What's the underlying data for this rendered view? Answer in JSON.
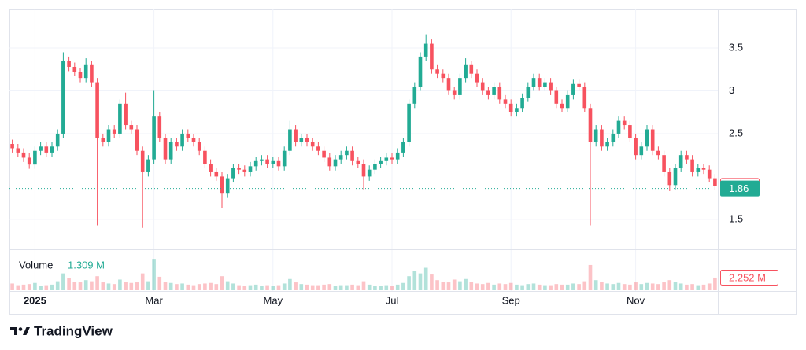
{
  "chart_data": {
    "type": "candlestick",
    "open": [
      2.38,
      2.33,
      2.28,
      2.22,
      2.14,
      2.3,
      2.35,
      2.28,
      2.35,
      2.5,
      3.35,
      3.28,
      3.22,
      3.15,
      3.3,
      3.1,
      2.45,
      2.4,
      2.55,
      2.5,
      2.85,
      2.6,
      2.55,
      2.3,
      2.05,
      2.2,
      2.7,
      2.45,
      2.2,
      2.4,
      2.35,
      2.5,
      2.45,
      2.4,
      2.3,
      2.15,
      2.05,
      2.0,
      1.8,
      1.98,
      2.1,
      2.08,
      2.05,
      2.12,
      2.18,
      2.2,
      2.15,
      2.18,
      2.12,
      2.3,
      2.55,
      2.4,
      2.45,
      2.4,
      2.35,
      2.3,
      2.22,
      2.12,
      2.2,
      2.25,
      2.3,
      2.18,
      2.15,
      2.0,
      2.08,
      2.15,
      2.18,
      2.22,
      2.2,
      2.28,
      2.4,
      2.85,
      3.05,
      3.4,
      3.55,
      3.25,
      3.2,
      3.15,
      3.0,
      2.95,
      3.15,
      3.3,
      3.2,
      3.1,
      3.0,
      2.95,
      3.05,
      2.9,
      2.85,
      2.75,
      2.8,
      2.92,
      3.05,
      3.15,
      3.05,
      3.1,
      3.0,
      2.85,
      2.8,
      2.95,
      3.08,
      3.05,
      2.8,
      2.4,
      2.55,
      2.35,
      2.4,
      2.5,
      2.65,
      2.6,
      2.45,
      2.25,
      2.35,
      2.55,
      2.3,
      2.25,
      2.05,
      1.9,
      2.1,
      2.25,
      2.2,
      2.05,
      2.1,
      2.08,
      1.98
    ],
    "high": [
      2.43,
      2.38,
      2.33,
      2.27,
      2.35,
      2.4,
      2.4,
      2.4,
      2.55,
      3.45,
      3.4,
      3.33,
      3.27,
      3.38,
      3.35,
      3.15,
      2.5,
      2.6,
      2.6,
      2.9,
      2.98,
      2.65,
      2.6,
      2.35,
      2.25,
      3.0,
      2.75,
      2.5,
      2.45,
      2.45,
      2.55,
      2.55,
      2.5,
      2.45,
      2.35,
      2.2,
      2.1,
      2.05,
      2.03,
      2.15,
      2.15,
      2.13,
      2.17,
      2.23,
      2.25,
      2.25,
      2.23,
      2.23,
      2.35,
      2.65,
      2.6,
      2.5,
      2.5,
      2.45,
      2.4,
      2.35,
      2.27,
      2.25,
      2.3,
      2.35,
      2.35,
      2.23,
      2.2,
      2.13,
      2.2,
      2.23,
      2.27,
      2.27,
      2.33,
      2.45,
      2.9,
      3.1,
      3.45,
      3.66,
      3.6,
      3.3,
      3.25,
      3.2,
      3.05,
      3.2,
      3.38,
      3.35,
      3.25,
      3.15,
      3.05,
      3.1,
      3.1,
      2.95,
      2.9,
      2.85,
      2.97,
      3.1,
      3.2,
      3.2,
      3.15,
      3.15,
      3.05,
      2.9,
      3.0,
      3.13,
      3.13,
      3.1,
      2.85,
      2.6,
      2.6,
      2.45,
      2.55,
      2.7,
      2.7,
      2.65,
      2.5,
      2.4,
      2.6,
      2.6,
      2.35,
      2.3,
      2.1,
      2.15,
      2.3,
      2.3,
      2.25,
      2.15,
      2.15,
      2.13,
      2.03
    ],
    "low": [
      2.28,
      2.23,
      2.17,
      2.09,
      2.09,
      2.25,
      2.23,
      2.23,
      2.3,
      2.45,
      3.23,
      3.17,
      3.1,
      3.1,
      3.05,
      1.43,
      2.35,
      2.35,
      2.45,
      2.45,
      2.55,
      2.5,
      2.25,
      1.4,
      2.0,
      2.15,
      2.4,
      2.15,
      2.15,
      2.3,
      2.3,
      2.4,
      2.35,
      2.25,
      2.1,
      2.0,
      1.95,
      1.63,
      1.75,
      1.93,
      2.03,
      2.0,
      2.0,
      2.07,
      2.13,
      2.1,
      2.1,
      2.07,
      2.07,
      2.25,
      2.35,
      2.35,
      2.35,
      2.3,
      2.25,
      2.17,
      2.07,
      2.07,
      2.15,
      2.2,
      2.13,
      2.1,
      1.85,
      1.95,
      2.03,
      2.1,
      2.13,
      2.15,
      2.15,
      2.23,
      2.35,
      2.8,
      3.0,
      3.35,
      3.2,
      3.15,
      3.1,
      2.95,
      2.9,
      2.9,
      3.1,
      3.15,
      3.05,
      2.95,
      2.9,
      2.9,
      2.85,
      2.8,
      2.7,
      2.7,
      2.75,
      2.87,
      3.0,
      3.0,
      3.0,
      2.95,
      2.8,
      2.75,
      2.75,
      2.9,
      3.0,
      2.75,
      1.43,
      2.35,
      2.3,
      2.3,
      2.35,
      2.45,
      2.55,
      2.4,
      2.2,
      2.2,
      2.3,
      2.25,
      2.2,
      2.0,
      1.83,
      1.85,
      2.05,
      2.15,
      2.0,
      2.0,
      2.03,
      1.93,
      1.84
    ],
    "close": [
      2.33,
      2.28,
      2.22,
      2.14,
      2.3,
      2.35,
      2.28,
      2.35,
      2.5,
      3.35,
      3.28,
      3.22,
      3.15,
      3.3,
      3.1,
      2.45,
      2.4,
      2.55,
      2.5,
      2.85,
      2.6,
      2.55,
      2.3,
      2.05,
      2.2,
      2.7,
      2.45,
      2.2,
      2.4,
      2.35,
      2.5,
      2.45,
      2.4,
      2.3,
      2.15,
      2.05,
      2.0,
      1.8,
      1.98,
      2.1,
      2.08,
      2.05,
      2.12,
      2.18,
      2.2,
      2.15,
      2.18,
      2.12,
      2.3,
      2.55,
      2.4,
      2.45,
      2.4,
      2.35,
      2.3,
      2.22,
      2.12,
      2.2,
      2.25,
      2.3,
      2.18,
      2.15,
      2.0,
      2.08,
      2.15,
      2.18,
      2.22,
      2.2,
      2.28,
      2.4,
      2.85,
      3.05,
      3.4,
      3.55,
      3.25,
      3.2,
      3.15,
      3.0,
      2.95,
      3.15,
      3.3,
      3.2,
      3.1,
      3.0,
      2.95,
      3.05,
      2.9,
      2.85,
      2.75,
      2.8,
      2.92,
      3.05,
      3.15,
      3.05,
      3.1,
      3.0,
      2.85,
      2.8,
      2.95,
      3.08,
      3.05,
      2.8,
      2.4,
      2.55,
      2.35,
      2.4,
      2.5,
      2.65,
      2.6,
      2.45,
      2.25,
      2.35,
      2.55,
      2.3,
      2.25,
      2.05,
      1.9,
      2.1,
      2.25,
      2.2,
      2.05,
      2.1,
      2.08,
      1.98,
      1.89
    ],
    "up_color": "#22ab94",
    "down_color": "#f7525f",
    "xlim": [
      0,
      125
    ],
    "xticks": [
      {
        "value": 4,
        "label": "2025"
      },
      {
        "value": 25,
        "label": "Mar"
      },
      {
        "value": 46,
        "label": "May"
      },
      {
        "value": 67,
        "label": "Jul"
      },
      {
        "value": 88,
        "label": "Sep"
      },
      {
        "value": 110,
        "label": "Nov"
      }
    ],
    "ylim": [
      1.15,
      3.95
    ],
    "yticks": [
      1.5,
      2.5,
      3,
      3.5
    ],
    "grid": true,
    "last_price": 1.89,
    "reference_price": 1.86,
    "volume": {
      "title": "Volume",
      "legend_value": "1.309 M",
      "ylim": [
        0,
        6.6
      ],
      "values": [
        1.2,
        0.9,
        1.0,
        1.1,
        1.3,
        0.8,
        0.9,
        1.0,
        1.6,
        3.0,
        2.2,
        1.5,
        1.4,
        1.8,
        1.6,
        2.5,
        1.4,
        1.2,
        1.1,
        1.9,
        1.5,
        1.3,
        1.4,
        3.0,
        1.6,
        5.6,
        2.4,
        1.5,
        1.3,
        1.1,
        1.2,
        1.0,
        0.9,
        1.1,
        1.2,
        1.3,
        1.1,
        2.5,
        1.6,
        1.2,
        0.9,
        0.8,
        0.9,
        1.0,
        0.8,
        0.9,
        0.8,
        0.9,
        1.2,
        2.0,
        1.4,
        1.1,
        1.0,
        0.9,
        0.9,
        1.0,
        1.1,
        0.8,
        0.9,
        0.9,
        1.0,
        0.9,
        1.6,
        1.0,
        0.8,
        0.8,
        0.9,
        0.8,
        1.0,
        1.3,
        2.5,
        3.5,
        3.0,
        4.0,
        2.8,
        1.8,
        1.5,
        1.4,
        1.9,
        1.6,
        2.0,
        1.5,
        1.2,
        1.1,
        1.3,
        1.0,
        1.2,
        1.1,
        1.3,
        1.0,
        0.9,
        1.1,
        1.2,
        1.0,
        0.9,
        0.9,
        1.1,
        1.0,
        1.0,
        1.2,
        1.1,
        1.6,
        4.5,
        1.8,
        1.5,
        1.2,
        1.1,
        1.3,
        1.1,
        1.0,
        1.4,
        1.1,
        1.3,
        1.2,
        1.1,
        1.4,
        1.8,
        1.5,
        1.2,
        1.0,
        1.1,
        0.9,
        1.0,
        1.2,
        2.252
      ],
      "last_label": "2.252 M"
    }
  },
  "branding": "TradingView"
}
